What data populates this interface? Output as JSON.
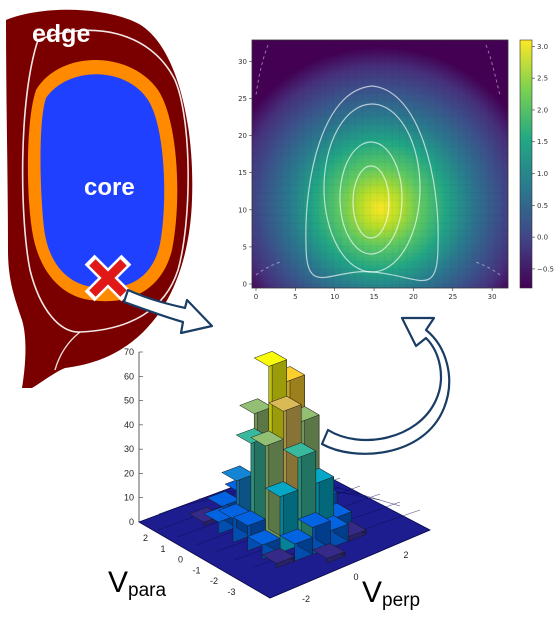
{
  "tokamak": {
    "edge_label": "edge",
    "core_label": "core",
    "colors": {
      "edge": "#7a0000",
      "pedestal": "#ff8a00",
      "core": "#2040ff",
      "marker": "#e01818"
    }
  },
  "chart_data": [
    {
      "type": "heatmap",
      "xticks": [
        "0",
        "5",
        "10",
        "15",
        "20",
        "25",
        "30"
      ],
      "yticks": [
        "0",
        "5",
        "10",
        "15",
        "20",
        "25",
        "30"
      ],
      "xlim": [
        0,
        31
      ],
      "ylim": [
        0,
        31
      ],
      "colorbar": {
        "ticks": [
          "3.0",
          "2.5",
          "2.0",
          "1.5",
          "1.0",
          "0.5",
          "0.0",
          "−0.5"
        ],
        "range": [
          -0.8,
          3.1
        ],
        "colormap": "viridis"
      },
      "peak": {
        "x": 15,
        "y": 10.5,
        "value": 3.1
      },
      "contours": "white"
    },
    {
      "type": "bar",
      "projection": "3d",
      "xlabel_main": "V",
      "xlabel_sub": "perp",
      "ylabel_main": "V",
      "ylabel_sub": "para",
      "zticks": [
        "0",
        "10",
        "20",
        "30",
        "40",
        "50",
        "60",
        "70"
      ],
      "zlim": [
        0,
        70
      ],
      "yticks": [
        "2",
        "1",
        "0",
        "-1",
        "-2",
        "-3"
      ],
      "xticks": [
        "-2",
        "0",
        "2"
      ],
      "peak_value": 67,
      "colormap": "parula"
    }
  ]
}
